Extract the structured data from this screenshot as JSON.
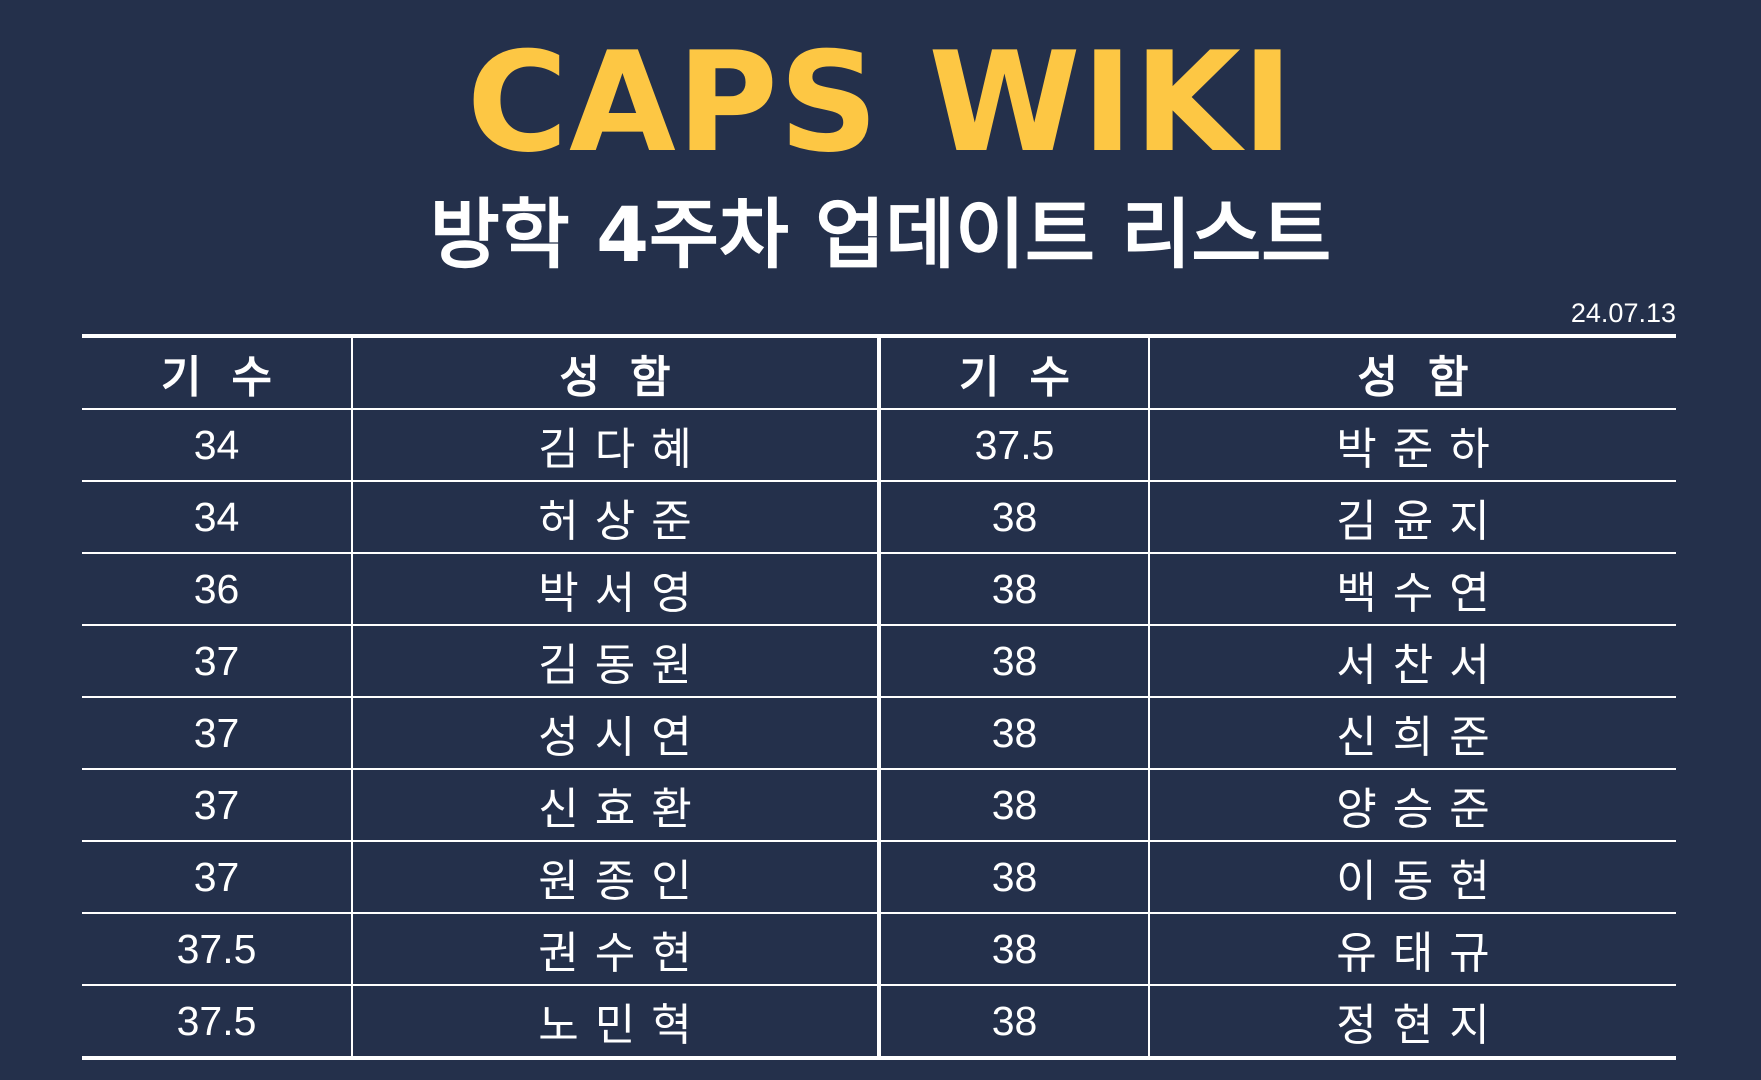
{
  "title": "CAPS WIKI",
  "subtitle": "방학 4주차 업데이트 리스트",
  "date": "24.07.13",
  "table": {
    "headers": [
      "기수",
      "성함",
      "기수",
      "성함"
    ],
    "rows": [
      {
        "left_gen": "34",
        "left_name": "김다혜",
        "right_gen": "37.5",
        "right_name": "박준하"
      },
      {
        "left_gen": "34",
        "left_name": "허상준",
        "right_gen": "38",
        "right_name": "김윤지"
      },
      {
        "left_gen": "36",
        "left_name": "박서영",
        "right_gen": "38",
        "right_name": "백수연"
      },
      {
        "left_gen": "37",
        "left_name": "김동원",
        "right_gen": "38",
        "right_name": "서찬서"
      },
      {
        "left_gen": "37",
        "left_name": "성시연",
        "right_gen": "38",
        "right_name": "신희준"
      },
      {
        "left_gen": "37",
        "left_name": "신효환",
        "right_gen": "38",
        "right_name": "양승준"
      },
      {
        "left_gen": "37",
        "left_name": "원종인",
        "right_gen": "38",
        "right_name": "이동현"
      },
      {
        "left_gen": "37.5",
        "left_name": "권수현",
        "right_gen": "38",
        "right_name": "유태규"
      },
      {
        "left_gen": "37.5",
        "left_name": "노민혁",
        "right_gen": "38",
        "right_name": "정현지"
      }
    ]
  }
}
